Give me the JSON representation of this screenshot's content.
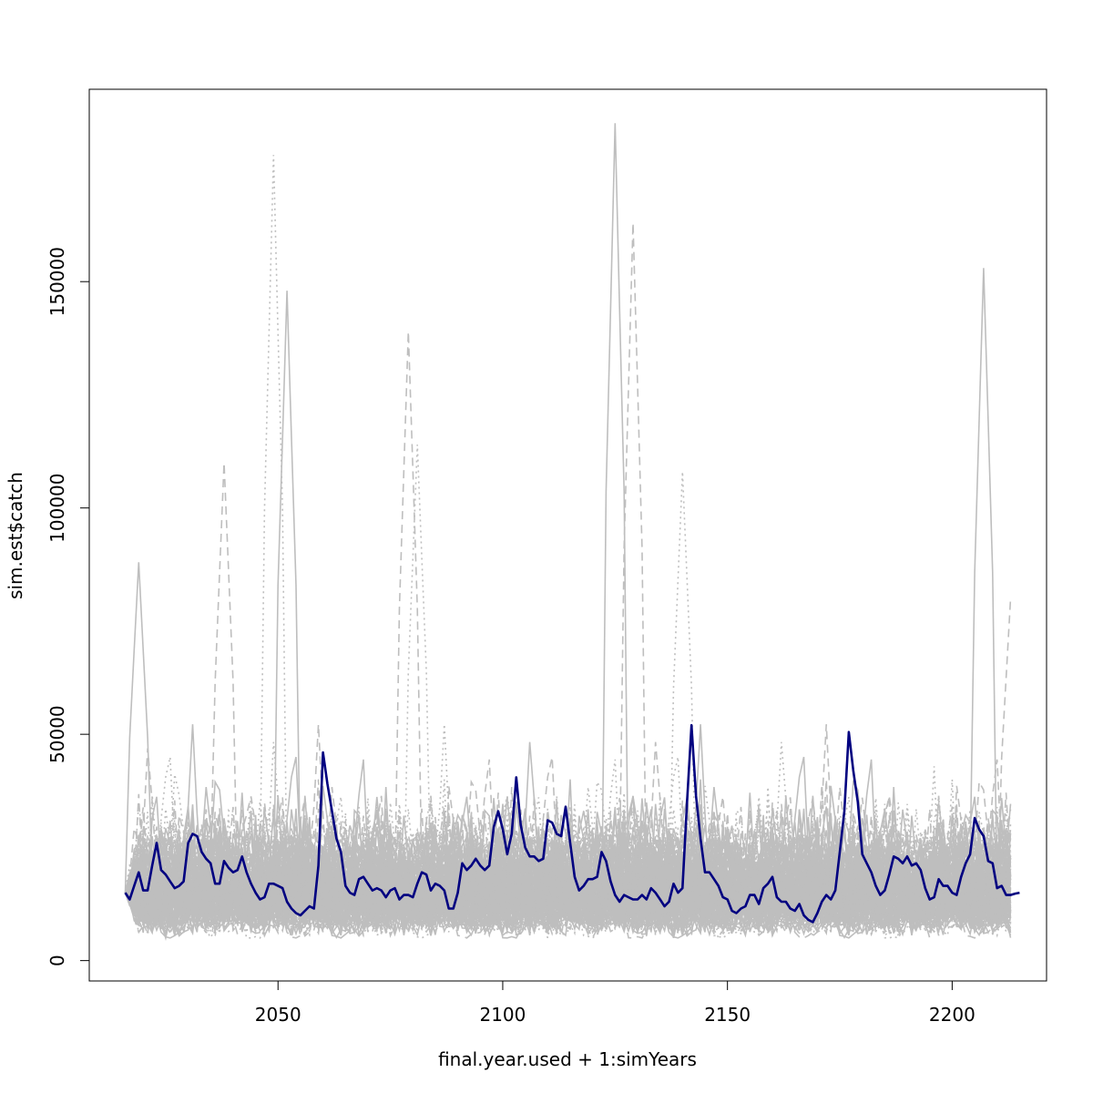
{
  "chart_data": {
    "type": "line",
    "title": "",
    "xlabel": "final.year.used + 1:simYears",
    "ylabel": "sim.est$catch",
    "xlim": [
      2008,
      2221
    ],
    "ylim": [
      -4500,
      192500
    ],
    "x_ticks": [
      2050,
      2100,
      2150,
      2200
    ],
    "x_tick_labels": [
      "2050",
      "2100",
      "2150",
      "2200"
    ],
    "y_ticks": [
      0,
      50000,
      100000,
      150000
    ],
    "y_tick_labels": [
      "0",
      "50000",
      "100000",
      "150000"
    ],
    "grid": false,
    "legend": "none",
    "x_range": [
      2016,
      2213
    ],
    "colors": {
      "simulations": "#bebebe",
      "highlight": "#000080",
      "frame": "#000000"
    },
    "series": [
      {
        "role": "highlighted-simulation",
        "color": "#000080",
        "x_start": 2016,
        "values": [
          15000,
          13500,
          16500,
          19500,
          15500,
          15500,
          21000,
          26000,
          20000,
          19000,
          17500,
          16000,
          16500,
          17500,
          26000,
          28000,
          27500,
          24000,
          22500,
          21500,
          17000,
          17000,
          22000,
          20500,
          19500,
          20000,
          23000,
          19500,
          17000,
          15000,
          13500,
          14000,
          17000,
          17000,
          16500,
          16000,
          13000,
          11500,
          10500,
          10000,
          11000,
          12000,
          11500,
          21000,
          46000,
          39000,
          33000,
          27000,
          24000,
          16500,
          15000,
          14500,
          18000,
          18500,
          17000,
          15500,
          16000,
          15500,
          14000,
          15500,
          16000,
          13500,
          14500,
          14500,
          14000,
          17000,
          19500,
          19000,
          15500,
          17000,
          16500,
          15500,
          11500,
          11500,
          15000,
          21500,
          20000,
          21000,
          22500,
          21000,
          20000,
          21000,
          29500,
          33000,
          29000,
          23500,
          28000,
          40500,
          30000,
          25000,
          23000,
          23000,
          22000,
          22500,
          31000,
          30500,
          28000,
          27500,
          34000,
          26000,
          18500,
          15500,
          16500,
          18000,
          18000,
          18500,
          24000,
          22000,
          17500,
          14500,
          13000,
          14500,
          14000,
          13500,
          13500,
          14500,
          13500,
          16000,
          15000,
          13500,
          12000,
          13000,
          17000,
          15000,
          16000,
          35000,
          52000,
          36500,
          27000,
          19500,
          19500,
          18000,
          16500,
          14000,
          13500,
          11000,
          10500,
          11500,
          12000,
          14500,
          14500,
          12500,
          16000,
          17000,
          18500,
          14000,
          13000,
          13000,
          11500,
          11000,
          12500,
          10000,
          9000,
          8500,
          10500,
          13000,
          14500,
          13500,
          15500,
          24000,
          33000,
          50500,
          42000,
          35000,
          23500,
          21500,
          19500,
          16500,
          14500,
          15500,
          19000,
          23000,
          22500,
          21500,
          23000,
          21000,
          21500,
          20000,
          16000,
          13500,
          14000,
          18000,
          16500,
          16500,
          15000,
          14500,
          18500,
          21500,
          23500,
          31500,
          29000,
          27500,
          22000,
          21500,
          16000,
          16500,
          14500,
          14500,
          14800,
          15000
        ]
      }
    ],
    "simulation_envelope": {
      "count": 1000,
      "line_styles": [
        "solid",
        "dashed",
        "dotted"
      ],
      "typical_range": [
        6000,
        50000
      ],
      "peaks": [
        {
          "x": 2019,
          "y": 88000
        },
        {
          "x": 2038,
          "y": 110000
        },
        {
          "x": 2049,
          "y": 178000
        },
        {
          "x": 2052,
          "y": 148000
        },
        {
          "x": 2079,
          "y": 139000
        },
        {
          "x": 2081,
          "y": 114000
        },
        {
          "x": 2125,
          "y": 185000
        },
        {
          "x": 2129,
          "y": 163000
        },
        {
          "x": 2140,
          "y": 108000
        },
        {
          "x": 2207,
          "y": 153000
        },
        {
          "x": 2213,
          "y": 80000
        }
      ]
    }
  }
}
